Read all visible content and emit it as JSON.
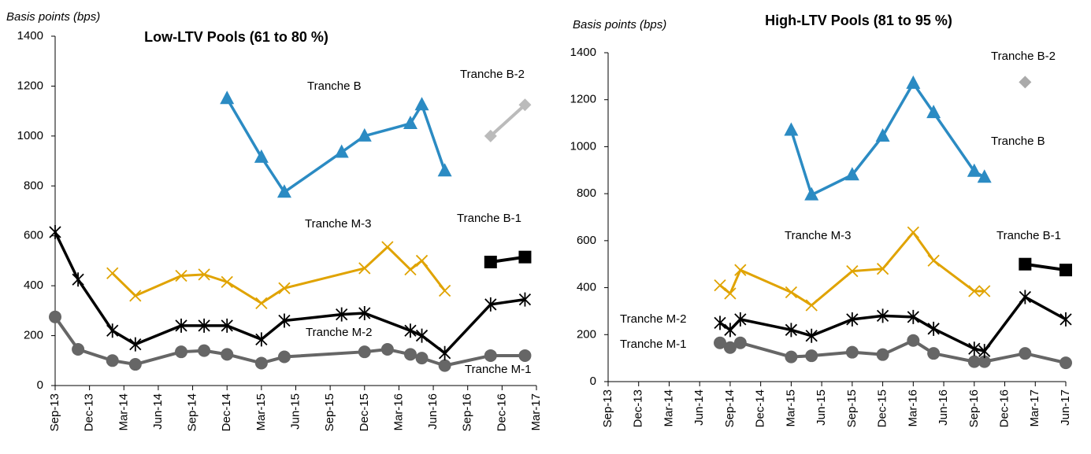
{
  "chart_data": [
    {
      "type": "line",
      "title": "Low-LTV Pools (61 to 80 %)",
      "y_label": "Basis points (bps)",
      "xticks": [
        "Sep-13",
        "Dec-13",
        "Mar-14",
        "Jun-14",
        "Sep-14",
        "Dec-14",
        "Mar-15",
        "Jun-15",
        "Sep-15",
        "Dec-15",
        "Mar-16",
        "Jun-16",
        "Sep-16",
        "Dec-16",
        "Mar-17"
      ],
      "xlim": [
        "Sep-13",
        "Mar-17"
      ],
      "ylim": [
        0,
        1400
      ],
      "yticks": [
        0,
        200,
        400,
        600,
        800,
        1000,
        1200,
        1400
      ],
      "series": [
        {
          "name": "Tranche M-1",
          "color": "#666666",
          "marker": "circle",
          "x": [
            "Sep-13",
            "Nov-13",
            "Feb-14",
            "Apr-14",
            "Aug-14",
            "Oct-14",
            "Dec-14",
            "Mar-15",
            "May-15",
            "Dec-15",
            "Feb-16",
            "Apr-16",
            "May-16",
            "Jul-16",
            "Nov-16",
            "Feb-17"
          ],
          "values": [
            275,
            145,
            100,
            85,
            135,
            140,
            125,
            90,
            115,
            135,
            145,
            125,
            110,
            80,
            120,
            120
          ]
        },
        {
          "name": "Tranche M-2",
          "color": "#000000",
          "marker": "star",
          "x": [
            "Sep-13",
            "Nov-13",
            "Feb-14",
            "Apr-14",
            "Aug-14",
            "Oct-14",
            "Dec-14",
            "Mar-15",
            "May-15",
            "Oct-15",
            "Dec-15",
            "Apr-16",
            "May-16",
            "Jul-16",
            "Nov-16",
            "Feb-17"
          ],
          "values": [
            615,
            425,
            220,
            165,
            240,
            240,
            240,
            185,
            260,
            285,
            290,
            220,
            200,
            130,
            325,
            345
          ]
        },
        {
          "name": "Tranche M-3",
          "color": "#e0a300",
          "marker": "x",
          "x": [
            "Feb-14",
            "Apr-14",
            "Aug-14",
            "Oct-14",
            "Dec-14",
            "Mar-15",
            "May-15",
            "Dec-15",
            "Feb-16",
            "Apr-16",
            "May-16",
            "Jul-16"
          ],
          "values": [
            450,
            360,
            440,
            445,
            415,
            330,
            390,
            470,
            555,
            465,
            500,
            380
          ]
        },
        {
          "name": "Tranche B",
          "color": "#2b8bc3",
          "marker": "triangle",
          "x": [
            "Dec-14",
            "Mar-15",
            "May-15",
            "Oct-15",
            "Dec-15",
            "Apr-16",
            "May-16",
            "Jul-16"
          ],
          "values": [
            1150,
            915,
            775,
            935,
            1000,
            1050,
            1125,
            860
          ]
        },
        {
          "name": "Tranche B-1",
          "color": "#000000",
          "marker": "square",
          "x": [
            "Nov-16",
            "Feb-17"
          ],
          "values": [
            495,
            515
          ]
        },
        {
          "name": "Tranche B-2",
          "color": "#bbbbbb",
          "marker": "diamond",
          "x": [
            "Nov-16",
            "Feb-17"
          ],
          "values": [
            1000,
            1125
          ]
        }
      ]
    },
    {
      "type": "line",
      "title": "High-LTV Pools (81 to 95 %)",
      "y_label": "Basis points (bps)",
      "xticks": [
        "Sep-13",
        "Dec-13",
        "Mar-14",
        "Jun-14",
        "Sep-14",
        "Dec-14",
        "Mar-15",
        "Jun-15",
        "Sep-15",
        "Dec-15",
        "Mar-16",
        "Jun-16",
        "Sep-16",
        "Dec-16",
        "Mar-17",
        "Jun-17"
      ],
      "xlim": [
        "Sep-13",
        "Jun-17"
      ],
      "ylim": [
        0,
        1400
      ],
      "yticks": [
        0,
        200,
        400,
        600,
        800,
        1000,
        1200,
        1400
      ],
      "series": [
        {
          "name": "Tranche M-1",
          "color": "#666666",
          "marker": "circle",
          "x": [
            "Aug-14",
            "Sep-14",
            "Oct-14",
            "Mar-15",
            "May-15",
            "Sep-15",
            "Dec-15",
            "Mar-16",
            "May-16",
            "Sep-16",
            "Oct-16",
            "Feb-17",
            "Jun-17"
          ],
          "values": [
            165,
            145,
            165,
            105,
            110,
            125,
            115,
            175,
            120,
            85,
            85,
            120,
            80
          ]
        },
        {
          "name": "Tranche M-2",
          "color": "#000000",
          "marker": "star",
          "x": [
            "Aug-14",
            "Sep-14",
            "Oct-14",
            "Mar-15",
            "May-15",
            "Sep-15",
            "Dec-15",
            "Mar-16",
            "May-16",
            "Sep-16",
            "Oct-16",
            "Feb-17",
            "Jun-17"
          ],
          "values": [
            250,
            220,
            265,
            220,
            195,
            265,
            280,
            275,
            225,
            140,
            130,
            360,
            265
          ]
        },
        {
          "name": "Tranche M-3",
          "color": "#e0a300",
          "marker": "x",
          "x": [
            "Aug-14",
            "Sep-14",
            "Oct-14",
            "Mar-15",
            "May-15",
            "Sep-15",
            "Dec-15",
            "Mar-16",
            "May-16",
            "Sep-16",
            "Oct-16"
          ],
          "values": [
            410,
            375,
            475,
            380,
            325,
            470,
            480,
            635,
            515,
            385,
            385
          ]
        },
        {
          "name": "Tranche B",
          "color": "#2b8bc3",
          "marker": "triangle",
          "x": [
            "Mar-15",
            "May-15",
            "Sep-15",
            "Dec-15",
            "Mar-16",
            "May-16",
            "Sep-16",
            "Oct-16"
          ],
          "values": [
            1070,
            795,
            880,
            1045,
            1270,
            1145,
            895,
            870
          ]
        },
        {
          "name": "Tranche B-1",
          "color": "#000000",
          "marker": "square",
          "x": [
            "Feb-17",
            "Jun-17"
          ],
          "values": [
            500,
            475
          ]
        },
        {
          "name": "Tranche B-2",
          "color": "#aaaaaa",
          "marker": "diamond",
          "x": [
            "Feb-17"
          ],
          "values": [
            1275
          ]
        }
      ]
    }
  ]
}
